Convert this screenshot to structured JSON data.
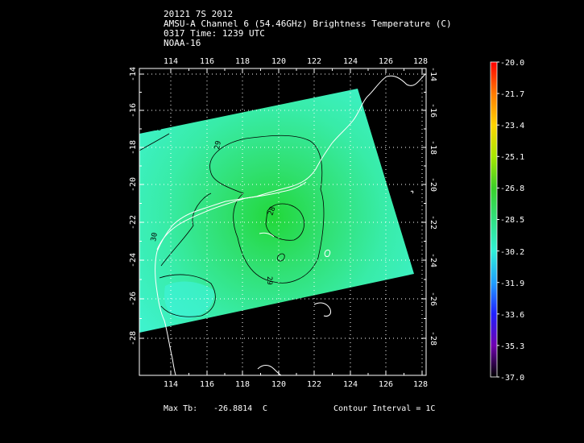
{
  "header": {
    "storm_line": "20121 7S 2012",
    "product_line": "AMSU-A Channel 6 (54.46GHz) Brightness Temperature (C)",
    "time_line": "0317 Time: 1239 UTC",
    "satellite_line": "NOAA-16"
  },
  "map": {
    "lon_ticks": [
      "114",
      "116",
      "118",
      "120",
      "122",
      "124",
      "126",
      "128"
    ],
    "lat_ticks": [
      "-14",
      "-16",
      "-18",
      "-20",
      "-22",
      "-24",
      "-26",
      "-28"
    ],
    "contour_labels": [
      "29",
      "29",
      "28",
      "29",
      "30"
    ],
    "colors": {
      "background": "#000000",
      "swath_edge": "#40f0c0",
      "swath_core": "#30e040",
      "contour": "#000000",
      "coastline": "#ffffff",
      "frame": "#ffffff"
    }
  },
  "colorbar": {
    "labels": [
      "-20.0",
      "-21.7",
      "-23.4",
      "-25.1",
      "-26.8",
      "-28.5",
      "-30.2",
      "-31.9",
      "-33.6",
      "-35.3",
      "-37.0"
    ],
    "stops": [
      "#ff0000",
      "#ff7a00",
      "#ffd400",
      "#a8e800",
      "#3ad028",
      "#30e080",
      "#30f0d8",
      "#20a0ff",
      "#2020ff",
      "#7000b0",
      "#000000"
    ]
  },
  "footer": {
    "max_tb_label": "Max Tb:",
    "max_tb_value": "-26.8814",
    "max_tb_unit": "C",
    "contour_interval": "Contour Interval = 1C"
  }
}
